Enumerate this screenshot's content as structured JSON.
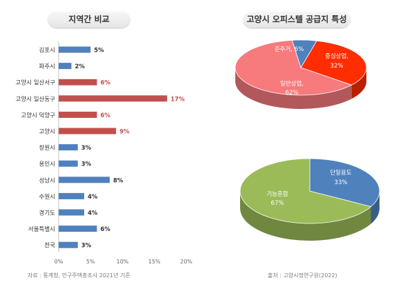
{
  "chart_data": [
    {
      "type": "bar",
      "orientation": "horizontal",
      "title": "지역간 비교",
      "categories": [
        "김포시",
        "파주시",
        "고양시 일산서구",
        "고양시 일산동구",
        "고양시 덕양구",
        "고양시",
        "창원시",
        "용인시",
        "성남시",
        "수원시",
        "경기도",
        "서울특별시",
        "전국"
      ],
      "values": [
        5,
        2,
        6,
        17,
        6,
        9,
        3,
        3,
        8,
        4,
        4,
        6,
        3
      ],
      "value_labels": [
        "5%",
        "2%",
        "6%",
        "17%",
        "6%",
        "9%",
        "3%",
        "3%",
        "8%",
        "4%",
        "4%",
        "6%",
        "3%"
      ],
      "highlight": [
        false,
        false,
        true,
        true,
        true,
        true,
        false,
        false,
        false,
        false,
        false,
        false,
        false
      ],
      "xlim": [
        0,
        20
      ],
      "xticks": [
        "0%",
        "5%",
        "10%",
        "15%",
        "20%"
      ],
      "colors": {
        "normal": "#4f81bd",
        "highlight": "#c0504d",
        "highlight_label": "#c0504d"
      },
      "source": "자료 : 통계청, 인구주택총조사 2021년 기준"
    },
    {
      "type": "pie",
      "title": "고양시 오피스텔 공급지 특성",
      "slices": [
        {
          "label": "중심상업,",
          "value": 32,
          "value_label": "32%",
          "color": "#ff2d00"
        },
        {
          "label": "일반상업,",
          "value": 62,
          "value_label": "62%",
          "color": "#f77a7d"
        },
        {
          "label": "준주거, 6%",
          "value": 6,
          "value_label": "",
          "color": "#4f81bd"
        }
      ],
      "source": "출처 : 고양시정연구원(2022)"
    },
    {
      "type": "pie",
      "slices": [
        {
          "label": "단일용도",
          "value": 33,
          "value_label": "33%",
          "color": "#4f81bd"
        },
        {
          "label": "기능혼합",
          "value": 67,
          "value_label": "67%",
          "color": "#9bbb59"
        }
      ]
    }
  ]
}
